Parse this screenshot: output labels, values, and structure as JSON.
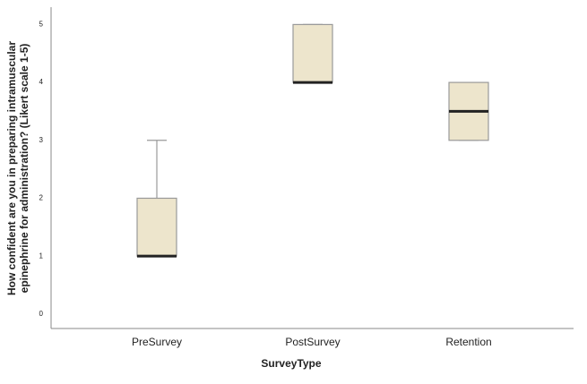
{
  "chart_data": {
    "type": "box",
    "ylabel": [
      "How confident are you in preparing intramuscular",
      "epinephrine for administration? (Likert scale 1-5)"
    ],
    "xlabel": "SurveyType",
    "categories": [
      "PreSurvey",
      "PostSurvey",
      "Retention"
    ],
    "boxes": [
      {
        "min": 1,
        "q1": 1,
        "median": 1,
        "q3": 2,
        "max": 3
      },
      {
        "min": 4,
        "q1": 4,
        "median": 4,
        "q3": 5,
        "max": 5
      },
      {
        "min": 3,
        "q1": 3,
        "median": 3.5,
        "q3": 4,
        "max": 4
      }
    ],
    "color": "#ede5cc",
    "ylim": [
      -0.25,
      5.3
    ],
    "yticks": [
      0,
      1,
      2,
      3,
      4,
      5
    ],
    "grid": false
  }
}
